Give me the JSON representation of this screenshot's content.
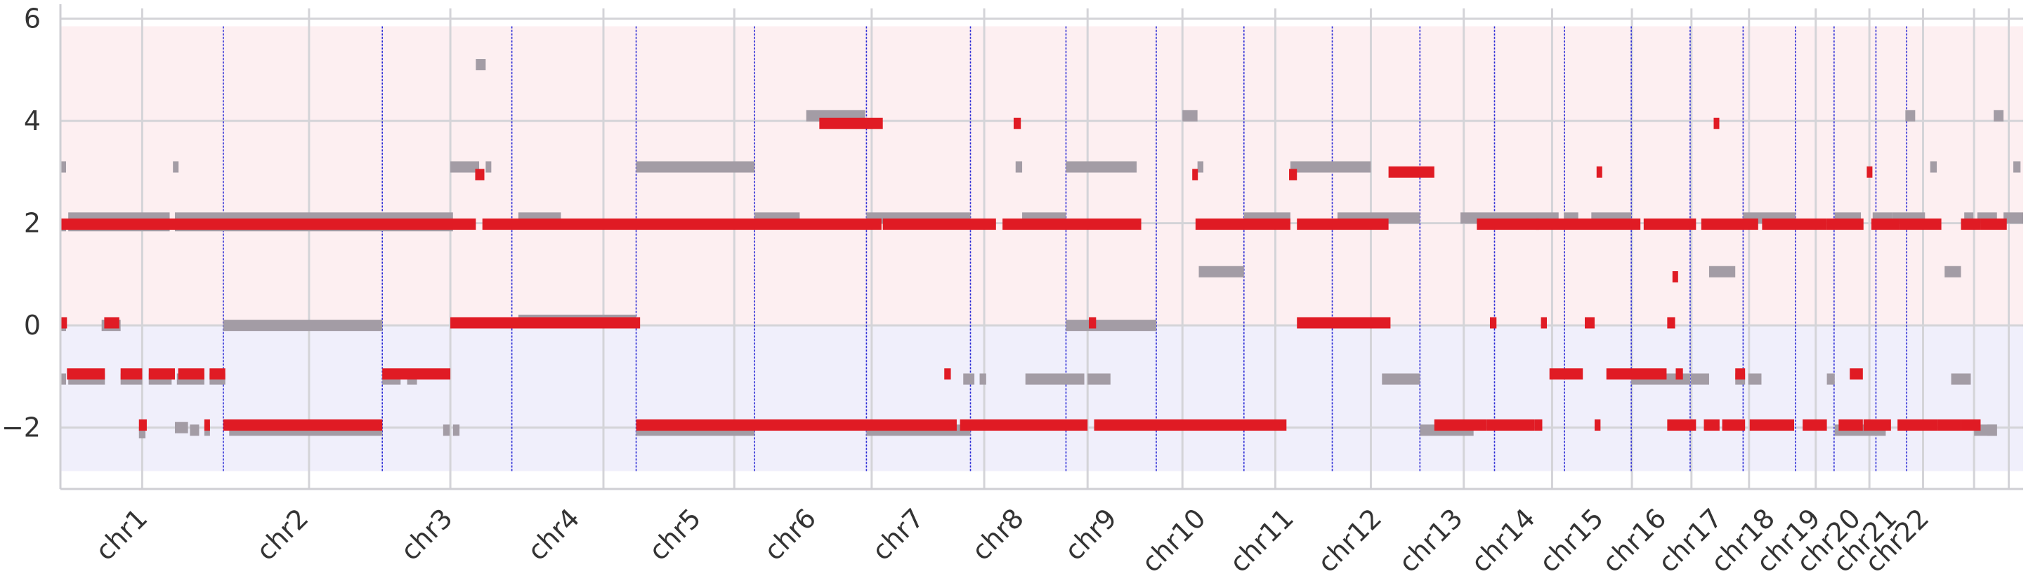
{
  "chart_data": {
    "type": "scatter",
    "title": "",
    "xlabel": "",
    "ylabel": "",
    "ylim": [
      -3.2,
      6.2
    ],
    "xlim": [
      0,
      3000
    ],
    "grid": true,
    "yticks": [
      -2,
      0,
      2,
      4,
      6
    ],
    "ytick_labels": [
      "−2",
      "0",
      "2",
      "4",
      "6"
    ],
    "colors": {
      "gain_band": "#fdeff1",
      "loss_band": "#f0effb",
      "grid": "#d4d4d8",
      "boundary": "#2b2bd6",
      "series_gray": "#a39ca5",
      "series_red": "#e01b24"
    },
    "bands": [
      {
        "kind": "gain",
        "y_from": 0,
        "y_to": 5.85
      },
      {
        "kind": "loss",
        "y_from": -2.85,
        "y_to": 0
      }
    ],
    "chromosomes": [
      {
        "name": "chr1",
        "start": 0,
        "end": 249
      },
      {
        "name": "chr2",
        "start": 249,
        "end": 492
      },
      {
        "name": "chr3",
        "start": 492,
        "end": 690
      },
      {
        "name": "chr4",
        "start": 690,
        "end": 880
      },
      {
        "name": "chr5",
        "start": 880,
        "end": 1061
      },
      {
        "name": "chr6",
        "start": 1061,
        "end": 1232
      },
      {
        "name": "chr7",
        "start": 1232,
        "end": 1391
      },
      {
        "name": "chr8",
        "start": 1391,
        "end": 1537
      },
      {
        "name": "chr9",
        "start": 1537,
        "end": 1675
      },
      {
        "name": "chr10",
        "start": 1675,
        "end": 1809
      },
      {
        "name": "chr11",
        "start": 1809,
        "end": 1944
      },
      {
        "name": "chr12",
        "start": 1944,
        "end": 2078
      },
      {
        "name": "chr13",
        "start": 2078,
        "end": 2192
      },
      {
        "name": "chr14",
        "start": 2192,
        "end": 2299
      },
      {
        "name": "chr15",
        "start": 2299,
        "end": 2401
      },
      {
        "name": "chr16",
        "start": 2401,
        "end": 2491
      },
      {
        "name": "chr17",
        "start": 2491,
        "end": 2572
      },
      {
        "name": "chr18",
        "start": 2572,
        "end": 2652
      },
      {
        "name": "chr19",
        "start": 2652,
        "end": 2711
      },
      {
        "name": "chr20",
        "start": 2711,
        "end": 2775
      },
      {
        "name": "chr21",
        "start": 2775,
        "end": 2822
      },
      {
        "name": "chr22",
        "start": 2822,
        "end": 2873
      }
    ],
    "grid_x": [
      125,
      380,
      596,
      830,
      1030,
      1240,
      1412,
      1570,
      1715,
      1857,
      2003,
      2145,
      2280,
      2402,
      2493,
      2581,
      2683,
      2765,
      2847,
      2925,
      2978
    ],
    "series": [
      {
        "name": "",
        "color_key": "series_gray",
        "segments": [
          [
            0,
            8,
            3.1
          ],
          [
            0,
            8,
            1.95
          ],
          [
            12,
            167,
            2.1
          ],
          [
            12,
            167,
            1.95
          ],
          [
            175,
            600,
            2.1
          ],
          [
            175,
            600,
            1.95
          ],
          [
            172,
            180,
            3.1
          ],
          [
            0,
            8,
            0
          ],
          [
            63,
            92,
            0
          ],
          [
            0,
            8,
            -1.05
          ],
          [
            12,
            68,
            -1.05
          ],
          [
            92,
            125,
            -1.05
          ],
          [
            135,
            170,
            -1.05
          ],
          [
            178,
            220,
            -1.05
          ],
          [
            228,
            252,
            -1.05
          ],
          [
            120,
            130,
            -2.1
          ],
          [
            175,
            195,
            -2.0
          ],
          [
            198,
            212,
            -2.05
          ],
          [
            220,
            227,
            -2.05
          ],
          [
            249,
            492,
            0
          ],
          [
            258,
            492,
            -2.05
          ],
          [
            492,
            520,
            -1.05
          ],
          [
            530,
            545,
            -1.05
          ],
          [
            585,
            595,
            -2.05
          ],
          [
            600,
            610,
            -2.05
          ],
          [
            635,
            650,
            5.1
          ],
          [
            596,
            640,
            3.1
          ],
          [
            650,
            656,
            3.1
          ],
          [
            700,
            765,
            2.1
          ],
          [
            700,
            880,
            0.1
          ],
          [
            880,
            1061,
            3.1
          ],
          [
            880,
            1061,
            -2.05
          ],
          [
            1061,
            1130,
            2.1
          ],
          [
            1140,
            1230,
            4.1
          ],
          [
            1232,
            1391,
            -2.05
          ],
          [
            1380,
            1397,
            -1.05
          ],
          [
            1405,
            1415,
            -1.05
          ],
          [
            1232,
            1391,
            2.1
          ],
          [
            1460,
            1470,
            3.1
          ],
          [
            1470,
            1537,
            2.1
          ],
          [
            1475,
            1565,
            -1.05
          ],
          [
            1570,
            1605,
            -1.05
          ],
          [
            1537,
            1675,
            0
          ],
          [
            1537,
            1645,
            3.1
          ],
          [
            1715,
            1738,
            4.1
          ],
          [
            1738,
            1747,
            3.1
          ],
          [
            1740,
            1809,
            1.05
          ],
          [
            1809,
            1880,
            2.1
          ],
          [
            1880,
            1944,
            3.1
          ],
          [
            1944,
            2003,
            3.1
          ],
          [
            1952,
            2078,
            2.1
          ],
          [
            2020,
            2078,
            -1.05
          ],
          [
            2078,
            2160,
            -2.05
          ],
          [
            2140,
            2192,
            2.1
          ],
          [
            2192,
            2290,
            2.1
          ],
          [
            2298,
            2320,
            2.1
          ],
          [
            2340,
            2401,
            2.1
          ],
          [
            2401,
            2491,
            -1.05
          ],
          [
            2492,
            2520,
            -1.05
          ],
          [
            2520,
            2560,
            1.05
          ],
          [
            2560,
            2575,
            -1.05
          ],
          [
            2580,
            2600,
            -1.05
          ],
          [
            2572,
            2652,
            2.1
          ],
          [
            2700,
            2712,
            -1.05
          ],
          [
            2712,
            2790,
            -2.05
          ],
          [
            2712,
            2752,
            2.1
          ],
          [
            2770,
            2800,
            2.1
          ],
          [
            2800,
            2850,
            2.1
          ],
          [
            2858,
            2868,
            3.1
          ],
          [
            2880,
            2905,
            1.05
          ],
          [
            2890,
            2920,
            -1.05
          ],
          [
            2910,
            2924,
            2.1
          ],
          [
            2925,
            2960,
            -2.05
          ],
          [
            2930,
            2960,
            2.1
          ],
          [
            2985,
            2996,
            3.1
          ],
          [
            2955,
            2970,
            4.1
          ],
          [
            2945,
            2960,
            -2.05
          ],
          [
            2970,
            3000,
            2.1
          ],
          [
            2820,
            2835,
            4.1
          ]
        ]
      },
      {
        "name": "",
        "color_key": "series_red",
        "segments": [
          [
            0,
            635,
            1.98
          ],
          [
            645,
            1255,
            1.98
          ],
          [
            0,
            10,
            0.05
          ],
          [
            67,
            90,
            0.05
          ],
          [
            10,
            68,
            -0.95
          ],
          [
            92,
            125,
            -0.95
          ],
          [
            135,
            175,
            -0.95
          ],
          [
            180,
            220,
            -0.95
          ],
          [
            228,
            252,
            -0.95
          ],
          [
            120,
            132,
            -1.95
          ],
          [
            220,
            226,
            -1.95
          ],
          [
            249,
            492,
            -1.95
          ],
          [
            492,
            596,
            -0.95
          ],
          [
            596,
            886,
            0.05
          ],
          [
            634,
            648,
            2.95
          ],
          [
            880,
            1370,
            -1.95
          ],
          [
            1160,
            1257,
            3.95
          ],
          [
            1351,
            1361,
            -0.95
          ],
          [
            1375,
            1570,
            -1.95
          ],
          [
            1257,
            1430,
            1.98
          ],
          [
            1440,
            1652,
            1.98
          ],
          [
            1457,
            1468,
            3.95
          ],
          [
            1572,
            1583,
            0.05
          ],
          [
            1580,
            1874,
            -1.95
          ],
          [
            1730,
            1737,
            2.95
          ],
          [
            1735,
            1880,
            1.98
          ],
          [
            1878,
            1890,
            2.95
          ],
          [
            1890,
            2030,
            1.98
          ],
          [
            1890,
            2033,
            0.05
          ],
          [
            2030,
            2100,
            3.0
          ],
          [
            2100,
            2180,
            -1.95
          ],
          [
            2180,
            2253,
            -1.95
          ],
          [
            2165,
            2260,
            1.98
          ],
          [
            2185,
            2195,
            0.05
          ],
          [
            2253,
            2265,
            -1.95
          ],
          [
            2255,
            2415,
            1.98
          ],
          [
            2263,
            2272,
            0.05
          ],
          [
            2276,
            2327,
            -0.95
          ],
          [
            2330,
            2345,
            0.05
          ],
          [
            2345,
            2354,
            -1.95
          ],
          [
            2348,
            2356,
            3.0
          ],
          [
            2363,
            2455,
            -0.95
          ],
          [
            2420,
            2500,
            1.98
          ],
          [
            2456,
            2468,
            0.05
          ],
          [
            2456,
            2500,
            -1.95
          ],
          [
            2464,
            2470,
            0.95
          ],
          [
            2469,
            2480,
            -0.95
          ],
          [
            2512,
            2536,
            -1.95
          ],
          [
            2540,
            2575,
            -1.95
          ],
          [
            2508,
            2595,
            1.98
          ],
          [
            2527,
            2535,
            3.95
          ],
          [
            2560,
            2575,
            -0.95
          ],
          [
            2582,
            2650,
            -1.95
          ],
          [
            2601,
            2700,
            1.98
          ],
          [
            2663,
            2700,
            -1.95
          ],
          [
            2700,
            2756,
            1.98
          ],
          [
            2718,
            2755,
            -1.95
          ],
          [
            2735,
            2755,
            -0.95
          ],
          [
            2756,
            2798,
            -1.95
          ],
          [
            2761,
            2768,
            3.0
          ],
          [
            2768,
            2810,
            1.98
          ],
          [
            2808,
            2870,
            -1.95
          ],
          [
            2810,
            2875,
            1.98
          ],
          [
            2870,
            2905,
            -1.95
          ],
          [
            2905,
            2935,
            -1.95
          ],
          [
            2905,
            2935,
            1.98
          ],
          [
            2935,
            2975,
            1.98
          ]
        ]
      }
    ]
  }
}
